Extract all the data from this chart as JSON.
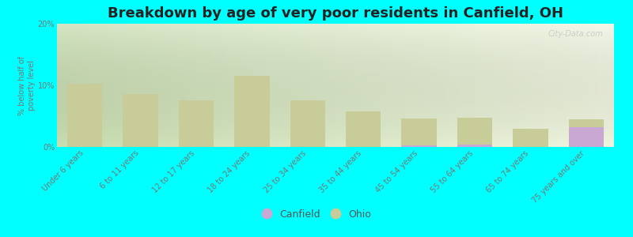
{
  "title": "Breakdown by age of very poor residents in Canfield, OH",
  "ylabel": "% below half of\npoverty level",
  "categories": [
    "Under 6 years",
    "6 to 11 years",
    "12 to 17 years",
    "18 to 24 years",
    "25 to 34 years",
    "35 to 44 years",
    "45 to 54 years",
    "55 to 64 years",
    "65 to 74 years",
    "75 years and over"
  ],
  "canfield_values": [
    0,
    0,
    0,
    0,
    0,
    0,
    0.3,
    0.4,
    0,
    3.2
  ],
  "ohio_values": [
    10.2,
    8.6,
    7.6,
    11.5,
    7.6,
    5.8,
    4.6,
    4.8,
    3.0,
    4.5
  ],
  "canfield_color": "#c9a8d4",
  "ohio_color": "#c8cc99",
  "background_color": "#00ffff",
  "plot_bg_left": "#c8ddb0",
  "plot_bg_right": "#f0f5e0",
  "ylim": [
    0,
    20
  ],
  "yticks": [
    0,
    10,
    20
  ],
  "ytick_labels": [
    "0%",
    "10%",
    "20%"
  ],
  "bar_width": 0.35,
  "title_fontsize": 13,
  "label_fontsize": 8,
  "watermark": "City-Data.com"
}
